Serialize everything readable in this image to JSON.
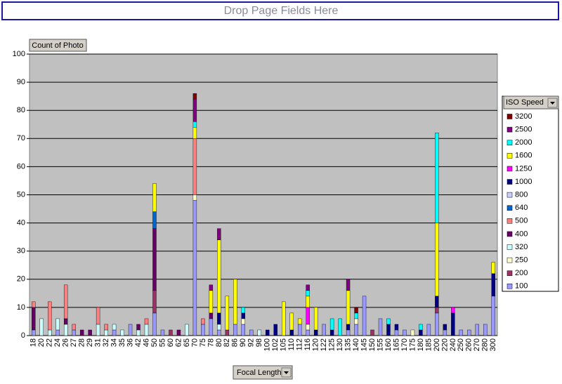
{
  "header": {
    "page_fields": "Drop Page Fields Here",
    "data_field": "Count of Photo",
    "series_field": "ISO Speed",
    "category_field": "Focal Length"
  },
  "chart_data": {
    "type": "stacked_bar",
    "legend": "right",
    "grid": true,
    "ylim": [
      0,
      100
    ],
    "yticks": [
      0,
      10,
      20,
      30,
      40,
      50,
      60,
      70,
      80,
      90,
      100
    ],
    "categories": [
      "18",
      "20",
      "22",
      "24",
      "26",
      "27",
      "28",
      "29",
      "31",
      "32",
      "34",
      "35",
      "36",
      "42",
      "46",
      "50",
      "55",
      "60",
      "62",
      "65",
      "70",
      "75",
      "78",
      "80",
      "82",
      "86",
      "90",
      "92",
      "98",
      "100",
      "102",
      "105",
      "110",
      "112",
      "116",
      "120",
      "122",
      "125",
      "130",
      "135",
      "140",
      "145",
      "150",
      "155",
      "160",
      "165",
      "170",
      "175",
      "180",
      "185",
      "200",
      "220",
      "240",
      "250",
      "260",
      "270",
      "280",
      "300"
    ],
    "series": [
      {
        "name": "100",
        "color": "#9999ff",
        "values": [
          2,
          0,
          0,
          2,
          0,
          2,
          0,
          0,
          0,
          0,
          2,
          0,
          4,
          0,
          0,
          8,
          2,
          0,
          0,
          0,
          48,
          4,
          6,
          2,
          0,
          4,
          4,
          2,
          0,
          0,
          0,
          0,
          0,
          4,
          2,
          0,
          4,
          0,
          0,
          2,
          4,
          14,
          0,
          6,
          0,
          2,
          2,
          0,
          0,
          4,
          8,
          2,
          0,
          2,
          2,
          4,
          4,
          14
        ]
      },
      {
        "name": "200",
        "color": "#993366",
        "values": [
          0,
          0,
          0,
          0,
          0,
          0,
          0,
          0,
          0,
          0,
          0,
          0,
          0,
          0,
          0,
          8,
          0,
          2,
          0,
          0,
          0,
          0,
          0,
          0,
          2,
          0,
          0,
          0,
          0,
          0,
          0,
          0,
          0,
          0,
          0,
          0,
          0,
          0,
          0,
          0,
          0,
          0,
          2,
          0,
          0,
          0,
          0,
          0,
          0,
          0,
          2,
          0,
          0,
          0,
          0,
          0,
          0,
          0
        ]
      },
      {
        "name": "250",
        "color": "#ffffcc",
        "values": [
          0,
          0,
          0,
          0,
          0,
          0,
          0,
          0,
          0,
          0,
          0,
          0,
          0,
          0,
          0,
          0,
          0,
          0,
          0,
          0,
          2,
          0,
          0,
          0,
          0,
          0,
          2,
          0,
          0,
          0,
          0,
          0,
          0,
          0,
          2,
          0,
          0,
          0,
          0,
          0,
          2,
          0,
          0,
          0,
          0,
          0,
          0,
          2,
          0,
          0,
          0,
          0,
          0,
          0,
          0,
          0,
          0,
          0
        ]
      },
      {
        "name": "320",
        "color": "#ccffff",
        "values": [
          0,
          6,
          2,
          4,
          4,
          0,
          0,
          0,
          4,
          2,
          2,
          2,
          0,
          2,
          4,
          0,
          0,
          0,
          0,
          4,
          0,
          0,
          0,
          2,
          0,
          0,
          0,
          0,
          2,
          0,
          0,
          0,
          0,
          0,
          0,
          0,
          0,
          0,
          0,
          0,
          0,
          0,
          0,
          0,
          0,
          0,
          0,
          0,
          0,
          0,
          0,
          0,
          0,
          0,
          0,
          0,
          0,
          0
        ]
      },
      {
        "name": "400",
        "color": "#660066",
        "values": [
          8,
          0,
          0,
          0,
          2,
          0,
          2,
          2,
          0,
          0,
          0,
          0,
          0,
          2,
          0,
          22,
          0,
          0,
          2,
          0,
          0,
          0,
          2,
          0,
          0,
          0,
          0,
          0,
          0,
          0,
          0,
          0,
          0,
          0,
          0,
          0,
          0,
          0,
          0,
          0,
          0,
          0,
          0,
          0,
          0,
          0,
          0,
          0,
          0,
          0,
          0,
          0,
          0,
          0,
          0,
          0,
          0,
          0
        ]
      },
      {
        "name": "500",
        "color": "#ff8080",
        "values": [
          2,
          0,
          10,
          0,
          12,
          2,
          0,
          0,
          6,
          2,
          0,
          0,
          0,
          0,
          2,
          0,
          0,
          0,
          0,
          0,
          20,
          2,
          0,
          0,
          0,
          0,
          0,
          0,
          0,
          0,
          0,
          0,
          0,
          0,
          0,
          0,
          0,
          0,
          0,
          0,
          0,
          0,
          0,
          0,
          0,
          0,
          0,
          0,
          0,
          0,
          0,
          0,
          0,
          0,
          0,
          0,
          0,
          0
        ]
      },
      {
        "name": "640",
        "color": "#0066cc",
        "values": [
          0,
          0,
          0,
          0,
          0,
          0,
          0,
          0,
          0,
          0,
          0,
          0,
          0,
          0,
          0,
          6,
          0,
          0,
          0,
          0,
          0,
          0,
          0,
          0,
          0,
          0,
          0,
          0,
          0,
          0,
          0,
          0,
          0,
          0,
          0,
          0,
          0,
          0,
          0,
          0,
          0,
          0,
          0,
          0,
          0,
          0,
          0,
          0,
          0,
          0,
          0,
          0,
          0,
          0,
          0,
          0,
          0,
          0
        ]
      },
      {
        "name": "800",
        "color": "#ccccff",
        "values": [
          0,
          0,
          0,
          0,
          0,
          0,
          0,
          0,
          0,
          0,
          0,
          0,
          0,
          0,
          0,
          0,
          0,
          0,
          0,
          0,
          0,
          0,
          0,
          0,
          0,
          0,
          0,
          0,
          0,
          0,
          0,
          0,
          0,
          0,
          0,
          0,
          0,
          0,
          0,
          0,
          0,
          0,
          0,
          0,
          0,
          0,
          0,
          0,
          0,
          0,
          0,
          0,
          0,
          0,
          0,
          0,
          0,
          0
        ]
      },
      {
        "name": "1000",
        "color": "#000080",
        "values": [
          0,
          0,
          0,
          0,
          0,
          0,
          0,
          0,
          0,
          0,
          0,
          0,
          0,
          0,
          0,
          0,
          0,
          0,
          0,
          0,
          0,
          0,
          0,
          4,
          0,
          0,
          2,
          0,
          0,
          2,
          4,
          0,
          2,
          0,
          0,
          2,
          0,
          2,
          0,
          2,
          0,
          0,
          0,
          0,
          4,
          2,
          0,
          0,
          2,
          0,
          4,
          2,
          8,
          0,
          0,
          0,
          0,
          8
        ]
      },
      {
        "name": "1250",
        "color": "#ff00ff",
        "values": [
          0,
          0,
          0,
          0,
          0,
          0,
          0,
          0,
          0,
          0,
          0,
          0,
          0,
          0,
          0,
          0,
          0,
          0,
          0,
          0,
          0,
          0,
          0,
          0,
          0,
          0,
          0,
          0,
          0,
          0,
          0,
          0,
          0,
          0,
          6,
          0,
          0,
          0,
          0,
          0,
          0,
          0,
          0,
          0,
          0,
          0,
          0,
          0,
          0,
          0,
          0,
          0,
          2,
          0,
          0,
          0,
          0,
          0
        ]
      },
      {
        "name": "1600",
        "color": "#ffff00",
        "values": [
          0,
          0,
          0,
          0,
          0,
          0,
          0,
          0,
          0,
          0,
          0,
          0,
          0,
          0,
          0,
          10,
          0,
          0,
          0,
          0,
          4,
          0,
          8,
          26,
          12,
          16,
          0,
          0,
          0,
          0,
          0,
          12,
          6,
          2,
          4,
          8,
          0,
          0,
          0,
          12,
          0,
          0,
          0,
          0,
          0,
          0,
          0,
          0,
          0,
          0,
          26,
          0,
          0,
          0,
          0,
          0,
          0,
          4
        ]
      },
      {
        "name": "2000",
        "color": "#00ffff",
        "values": [
          0,
          0,
          0,
          0,
          0,
          0,
          0,
          0,
          0,
          0,
          0,
          0,
          0,
          0,
          0,
          0,
          0,
          0,
          0,
          0,
          2,
          0,
          0,
          0,
          0,
          0,
          2,
          0,
          0,
          0,
          0,
          0,
          0,
          0,
          2,
          0,
          0,
          4,
          6,
          0,
          2,
          0,
          0,
          0,
          2,
          0,
          0,
          0,
          2,
          0,
          32,
          0,
          0,
          0,
          0,
          0,
          0,
          0
        ]
      },
      {
        "name": "2500",
        "color": "#800080",
        "values": [
          0,
          0,
          0,
          0,
          0,
          0,
          0,
          0,
          0,
          0,
          0,
          0,
          0,
          0,
          0,
          0,
          0,
          0,
          0,
          0,
          8,
          0,
          2,
          4,
          0,
          0,
          0,
          0,
          0,
          0,
          0,
          0,
          0,
          0,
          2,
          0,
          0,
          0,
          0,
          4,
          0,
          0,
          0,
          0,
          0,
          0,
          0,
          0,
          0,
          0,
          0,
          0,
          0,
          0,
          0,
          0,
          0,
          0
        ]
      },
      {
        "name": "3200",
        "color": "#800000",
        "values": [
          0,
          0,
          0,
          0,
          0,
          0,
          0,
          0,
          0,
          0,
          0,
          0,
          0,
          0,
          0,
          0,
          0,
          0,
          0,
          0,
          2,
          0,
          0,
          0,
          0,
          0,
          0,
          0,
          0,
          0,
          0,
          0,
          0,
          0,
          0,
          0,
          0,
          0,
          0,
          0,
          2,
          0,
          0,
          0,
          0,
          0,
          0,
          0,
          0,
          0,
          0,
          0,
          0,
          0,
          0,
          0,
          0,
          0
        ]
      }
    ]
  }
}
